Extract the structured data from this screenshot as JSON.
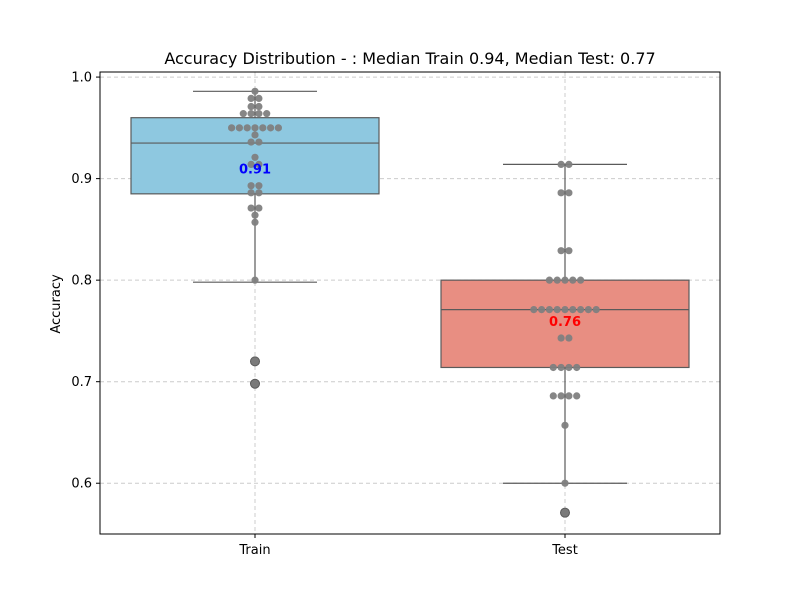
{
  "chart_data": {
    "type": "box",
    "title": "Accuracy Distribution - : Median Train 0.94, Median Test: 0.77",
    "xlabel": "",
    "ylabel": "Accuracy",
    "ylim": [
      0.55,
      1.005
    ],
    "yticks": [
      0.6,
      0.7,
      0.8,
      0.9,
      1.0
    ],
    "ytick_labels": [
      "0.6",
      "0.7",
      "0.8",
      "0.9",
      "1.0"
    ],
    "grid": true,
    "categories": [
      "Train",
      "Test"
    ],
    "boxes": [
      {
        "name": "Train",
        "color": "#8ec8e0",
        "q1": 0.885,
        "median": 0.935,
        "q3": 0.96,
        "whisker_low": 0.798,
        "whisker_high": 0.986,
        "outliers": [
          0.72,
          0.698
        ],
        "mean": 0.91,
        "mean_label": "0.91",
        "mean_label_color": "#0000ff",
        "points": [
          0.986,
          0.979,
          0.979,
          0.971,
          0.971,
          0.964,
          0.964,
          0.964,
          0.964,
          0.95,
          0.95,
          0.95,
          0.95,
          0.95,
          0.95,
          0.95,
          0.943,
          0.936,
          0.936,
          0.921,
          0.914,
          0.914,
          0.893,
          0.893,
          0.886,
          0.886,
          0.871,
          0.871,
          0.864,
          0.857,
          0.8
        ]
      },
      {
        "name": "Test",
        "color": "#e88e82",
        "q1": 0.714,
        "median": 0.771,
        "q3": 0.8,
        "whisker_low": 0.6,
        "whisker_high": 0.914,
        "outliers": [
          0.571
        ],
        "mean": 0.76,
        "mean_label": "0.76",
        "mean_label_color": "#ff0000",
        "points": [
          0.914,
          0.914,
          0.886,
          0.886,
          0.829,
          0.829,
          0.8,
          0.8,
          0.8,
          0.8,
          0.8,
          0.771,
          0.771,
          0.771,
          0.771,
          0.771,
          0.771,
          0.771,
          0.771,
          0.771,
          0.743,
          0.743,
          0.714,
          0.714,
          0.714,
          0.714,
          0.686,
          0.686,
          0.686,
          0.686,
          0.657,
          0.6
        ]
      }
    ]
  }
}
